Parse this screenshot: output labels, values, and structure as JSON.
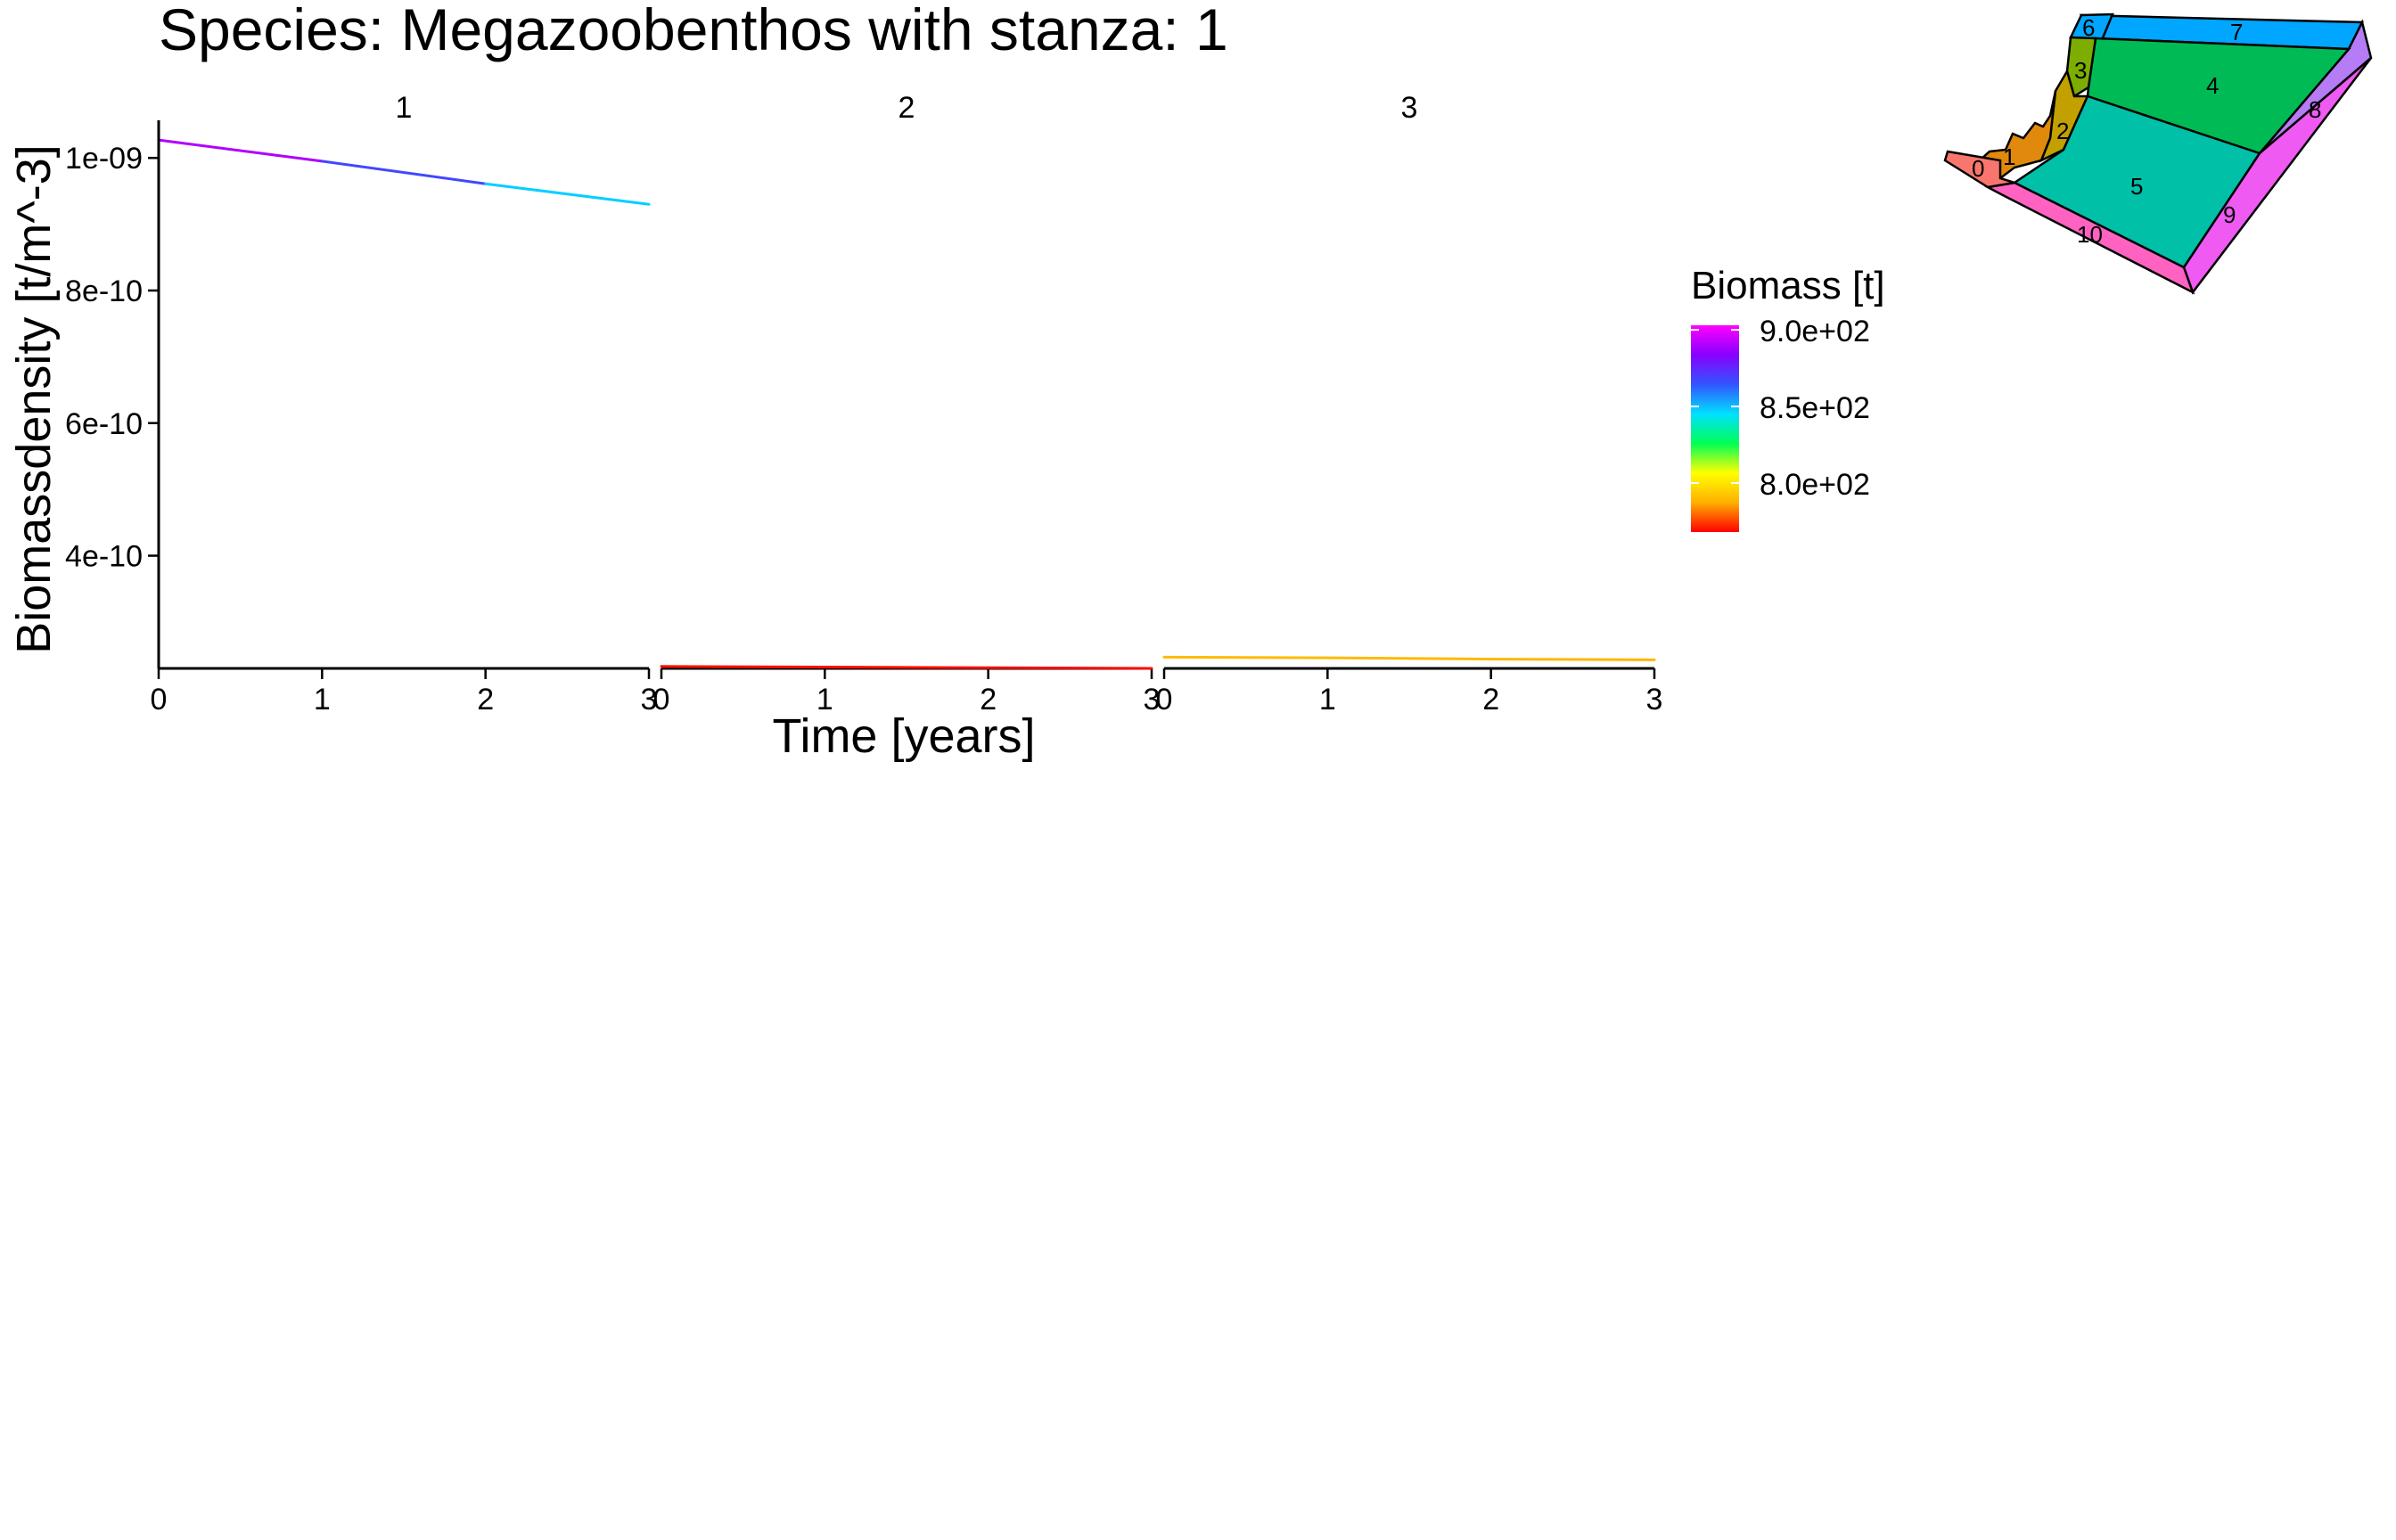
{
  "chart_data": {
    "type": "line",
    "title": "Species: Megazoobenthos with stanza: 1",
    "xlabel": "Time [years]",
    "ylabel": "Biomassdensity [t/m^-3]",
    "ylim": [
      2.3e-10,
      1.05e-09
    ],
    "xlim": [
      0,
      3
    ],
    "x_ticks": [
      0,
      1,
      2,
      3
    ],
    "y_ticks": [
      {
        "value": 4e-10,
        "label": "4e-10"
      },
      {
        "value": 6e-10,
        "label": "6e-10"
      },
      {
        "value": 8e-10,
        "label": "8e-10"
      },
      {
        "value": 1e-09,
        "label": "1e-09"
      }
    ],
    "grid": false,
    "panels": [
      {
        "label": "1",
        "x": [
          0,
          1,
          2,
          3
        ],
        "y": [
          1.027e-09,
          9.95e-10,
          9.61e-10,
          9.3e-10
        ],
        "biomass": [
          900,
          880,
          855,
          840
        ]
      },
      {
        "label": "2",
        "x": [
          0,
          1,
          2,
          3
        ],
        "y": [
          2.33e-10,
          2.32e-10,
          2.31e-10,
          2.3e-10
        ],
        "biomass": [
          770,
          770,
          769,
          769
        ]
      },
      {
        "label": "3",
        "x": [
          0,
          1,
          2,
          3
        ],
        "y": [
          2.47e-10,
          2.46e-10,
          2.44e-10,
          2.43e-10
        ],
        "biomass": [
          790,
          790,
          789,
          789
        ]
      }
    ],
    "legend": {
      "title": "Biomass [t]",
      "placement": "right",
      "range": [
        768,
        903
      ],
      "tick_values": [
        900,
        850,
        800
      ],
      "tick_labels": [
        "9.0e+02",
        "8.5e+02",
        "8.0e+02"
      ],
      "gradient_colors": [
        "#ff0000",
        "#ffb000",
        "#ffff00",
        "#00ff55",
        "#00e0ff",
        "#3355ff",
        "#8800ff",
        "#ff00ff"
      ]
    }
  },
  "map": {
    "polygon_labels": [
      "0",
      "1",
      "2",
      "3",
      "4",
      "5",
      "6",
      "7",
      "8",
      "9",
      "10"
    ]
  }
}
